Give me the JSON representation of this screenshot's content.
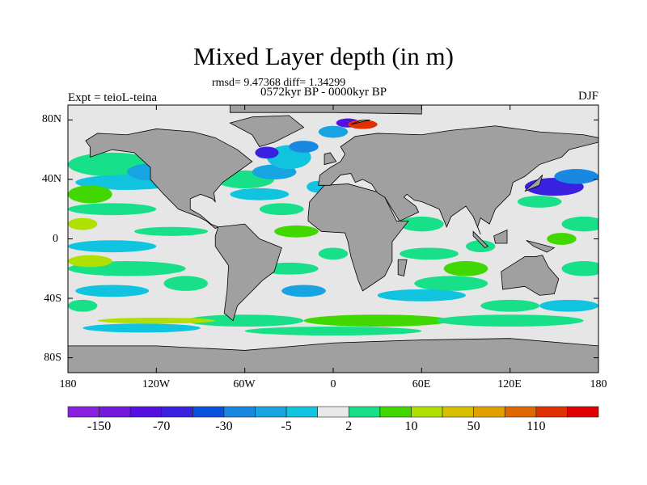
{
  "title": "Mixed Layer depth (in m)",
  "stats": "rmsd= 9.47368 diff= 1.34299",
  "period": "0572kyr BP - 0000kyr BP",
  "experiment": "Expt = teioL-teina",
  "season": "DJF",
  "x_ticks": [
    "180",
    "120W",
    "60W",
    "0",
    "60E",
    "120E",
    "180"
  ],
  "y_ticks": [
    "80N",
    "40N",
    "0",
    "40S",
    "80S"
  ],
  "colorbar": {
    "labels": [
      "-150",
      "-70",
      "-30",
      "-5",
      "2",
      "10",
      "50",
      "110"
    ],
    "colors": [
      "#8a20e0",
      "#7418e0",
      "#5410e0",
      "#3a20e0",
      "#0850e0",
      "#1888e0",
      "#18a4e0",
      "#10c4e0",
      "#e8e8e8",
      "#18e088",
      "#40d800",
      "#b0e000",
      "#d8c000",
      "#e0a000",
      "#e06800",
      "#e03000",
      "#e00000"
    ]
  },
  "colors": {
    "land": "#a0a0a0",
    "ocean": "#e6e6e6"
  }
}
